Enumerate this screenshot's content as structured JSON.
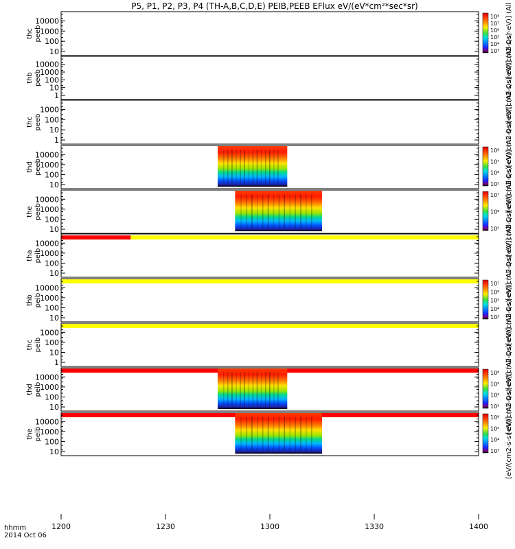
{
  "chart_data": {
    "type": "heatmap",
    "title": "P5, P1, P2, P3, P4 (TH-A,B,C,D,E) PEIB,PEEB EFlux eV/(eV*cm²*sec*sr)",
    "x_ticks": [
      "1200",
      "1230",
      "1300",
      "1330",
      "1400"
    ],
    "x_range_hhmm": [
      "1200",
      "1400"
    ],
    "x_caption": [
      "hhmm",
      "2014 Oct 06"
    ],
    "colorbar_units": "eV/(cm2-s-sr-eV)",
    "colorbar_label_suffix": "(All Qs)",
    "panels": [
      {
        "probe": "thc",
        "product": "peeb",
        "yticks": [
          "10000",
          "1000",
          "100",
          "10"
        ],
        "data_start": null,
        "data_end": null,
        "colorbar": [
          "10⁸",
          "10⁷",
          "10⁶",
          "10⁵",
          "10⁴",
          "10³"
        ],
        "status_bar": null
      },
      {
        "probe": "thb",
        "product": "peeb",
        "yticks": [
          "10000",
          "1000",
          "100",
          "10",
          "1"
        ],
        "data_start": null,
        "data_end": null,
        "colorbar": null,
        "status_bar": null
      },
      {
        "probe": "thc",
        "product": "peeb",
        "yticks": [
          "1000",
          "100",
          "10",
          "1"
        ],
        "data_start": null,
        "data_end": null,
        "colorbar": null,
        "status_bar": null
      },
      {
        "probe": "thd",
        "product": "peeb",
        "yticks": [
          "10000",
          "1000",
          "100",
          "10"
        ],
        "data_start": "1245",
        "data_end": "1305",
        "colorbar": [
          "10⁸",
          "10⁷",
          "10⁶",
          "10⁵"
        ],
        "status_bar": null
      },
      {
        "probe": "the",
        "product": "peeb",
        "yticks": [
          "10000",
          "1000",
          "100",
          "10"
        ],
        "data_start": "1250",
        "data_end": "1315",
        "colorbar": [
          "10⁷",
          "10⁶",
          "10⁵"
        ],
        "status_bar": {
          "segments": [
            {
              "from": "1200",
              "to": "1220",
              "color": "red"
            },
            {
              "from": "1220",
              "to": "1400",
              "color": "yellow"
            }
          ]
        }
      },
      {
        "probe": "tha",
        "product": "peib",
        "yticks": [
          "10000",
          "1000",
          "100",
          "10"
        ],
        "data_start": null,
        "data_end": null,
        "colorbar": null,
        "status_bar": {
          "segments": [
            {
              "from": "1200",
              "to": "1400",
              "color": "yellow"
            }
          ]
        }
      },
      {
        "probe": "thb",
        "product": "peib",
        "yticks": [
          "10000",
          "1000",
          "100",
          "10"
        ],
        "data_start": null,
        "data_end": null,
        "colorbar": [
          "10⁷",
          "10⁶",
          "10⁵",
          "10⁴",
          "10³"
        ],
        "status_bar": {
          "segments": [
            {
              "from": "1200",
              "to": "1400",
              "color": "yellow"
            }
          ]
        }
      },
      {
        "probe": "thc",
        "product": "peib",
        "yticks": [
          "1000",
          "100",
          "10",
          "1"
        ],
        "data_start": null,
        "data_end": null,
        "colorbar": null,
        "status_bar": {
          "segments": [
            {
              "from": "1200",
              "to": "1400",
              "color": "red"
            }
          ]
        }
      },
      {
        "probe": "thd",
        "product": "peib",
        "yticks": [
          "10000",
          "1000",
          "100",
          "10"
        ],
        "data_start": "1245",
        "data_end": "1305",
        "colorbar": [
          "10⁶",
          "10⁵",
          "10⁴",
          "10³"
        ],
        "status_bar": {
          "segments": [
            {
              "from": "1200",
              "to": "1400",
              "color": "red"
            }
          ]
        }
      },
      {
        "probe": "the",
        "product": "peib",
        "yticks": [
          "10000",
          "1000",
          "100",
          "10"
        ],
        "data_start": "1250",
        "data_end": "1315",
        "colorbar": [
          "10⁶",
          "10⁵",
          "10⁴",
          "10³"
        ],
        "status_bar": null
      }
    ]
  }
}
